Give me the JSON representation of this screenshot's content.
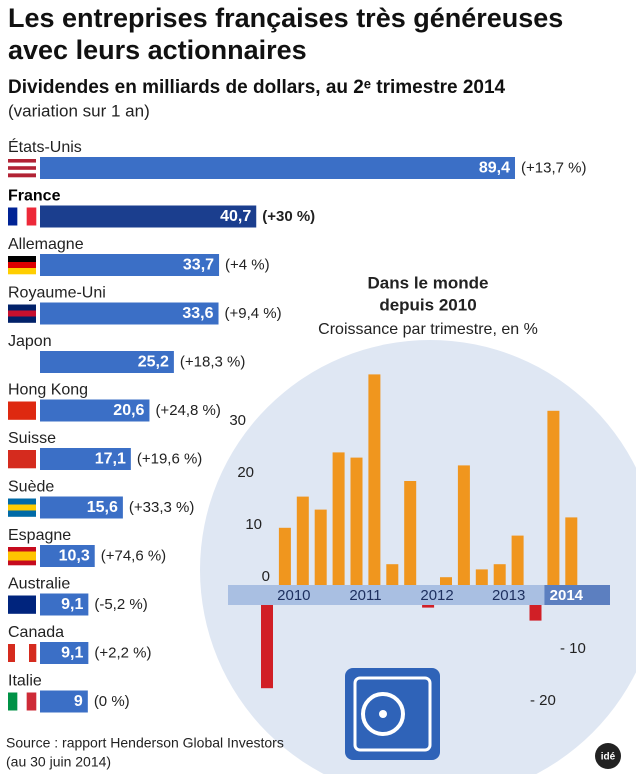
{
  "title": [
    "Les entreprises françaises très généreuses",
    "avec leurs actionnaires"
  ],
  "source": [
    "Source : rapport Henderson Global Investors",
    "(au 30 juin 2014)"
  ],
  "logo": "idé",
  "chart_data": [
    {
      "type": "hbar",
      "subtitle": "Dividendes en milliards de dollars, au 2ᵉ trimestre 2014",
      "note": "(variation sur 1 an)",
      "categories": [
        "États-Unis",
        "France",
        "Allemagne",
        "Royaume-Uni",
        "Japon",
        "Hong Kong",
        "Suisse",
        "Suède",
        "Espagne",
        "Australie",
        "Canada",
        "Italie"
      ],
      "values": [
        89.4,
        40.7,
        33.7,
        33.6,
        25.2,
        20.6,
        17.1,
        15.6,
        10.3,
        9.1,
        9.1,
        9
      ],
      "value_labels": [
        "89,4",
        "40,7",
        "33,7",
        "33,6",
        "25,2",
        "20,6",
        "17,1",
        "15,6",
        "10,3",
        "9,1",
        "9,1",
        "9"
      ],
      "change_labels": [
        "(+13,7 %)",
        "(+30 %)",
        "(+4 %)",
        "(+9,4 %)",
        "(+18,3 %)",
        "(+24,8 %)",
        "(+19,6 %)",
        "(+33,3 %)",
        "(+74,6 %)",
        "(-5,2 %)",
        "(+2,2 %)",
        "(0 %)"
      ],
      "colors": [
        "#3b6fc6",
        "#1b3e8e",
        "#3b6fc6",
        "#3b6fc6",
        "#3b6fc6",
        "#3b6fc6",
        "#3b6fc6",
        "#3b6fc6",
        "#3b6fc6",
        "#3b6fc6",
        "#3b6fc6",
        "#3b6fc6"
      ]
    },
    {
      "type": "bar",
      "title": [
        "Dans le monde",
        "depuis 2010"
      ],
      "subtitle": "Croissance par trimestre, en %",
      "categories": [
        "2010",
        null,
        null,
        null,
        "2011",
        null,
        null,
        null,
        "2012",
        null,
        null,
        null,
        "2013",
        null,
        null,
        null,
        "2014",
        null
      ],
      "values": [
        -16,
        11,
        17,
        14.5,
        25.5,
        24.5,
        40.5,
        4,
        20,
        -0.5,
        1.5,
        23,
        3,
        4,
        9.5,
        -3,
        33.5,
        13
      ],
      "color": "#f0961e",
      "negative_color": "#d11f26",
      "ylim": [
        -25,
        42
      ],
      "yticks": [
        30,
        20,
        10,
        0,
        {
          "value": -10,
          "label": "- 10"
        },
        {
          "value": -20,
          "label": "- 20"
        }
      ]
    }
  ]
}
